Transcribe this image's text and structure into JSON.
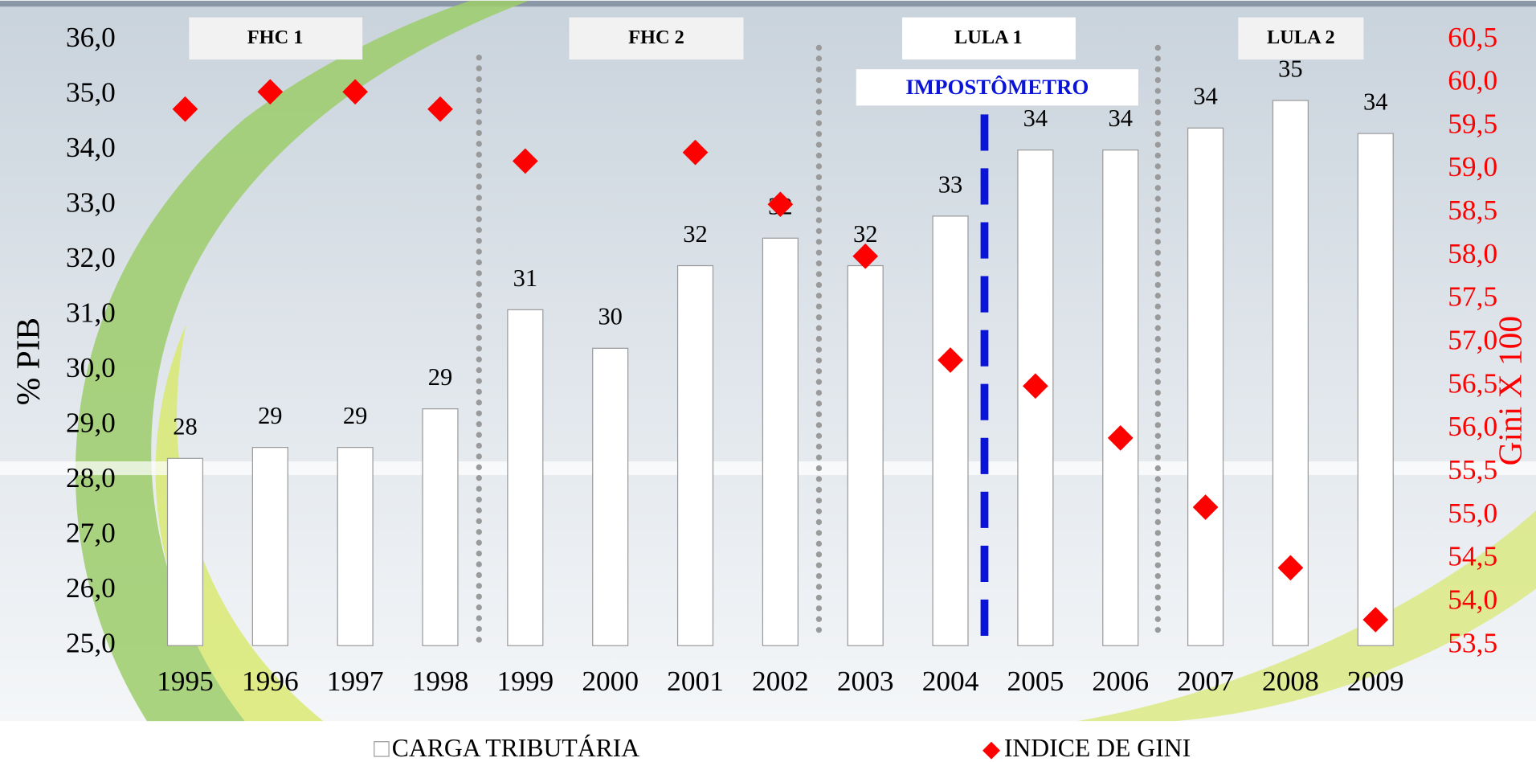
{
  "chart_data": {
    "type": "bar",
    "categories": [
      "1995",
      "1996",
      "1997",
      "1998",
      "1999",
      "2000",
      "2001",
      "2002",
      "2003",
      "2004",
      "2005",
      "2006",
      "2007",
      "2008",
      "2009"
    ],
    "series": [
      {
        "name": "CARGA TRIBUTÁRIA",
        "color": "#ffffff",
        "edgecolor": "#9a9a9a",
        "values": [
          28.4,
          28.6,
          28.6,
          29.3,
          31.1,
          30.4,
          31.9,
          32.4,
          31.9,
          32.8,
          34.0,
          34.0,
          34.4,
          34.9,
          34.3
        ],
        "value_labels": [
          "28",
          "29",
          "29",
          "29",
          "31",
          "30",
          "32",
          "32",
          "32",
          "33",
          "34",
          "34",
          "34",
          "35",
          "34"
        ]
      },
      {
        "name": "INDICE DE GINI",
        "color": "#ff0000",
        "type": "scatter",
        "axis": "y2",
        "values": [
          59.7,
          59.9,
          59.9,
          59.7,
          59.1,
          null,
          59.2,
          58.6,
          58.0,
          56.8,
          56.5,
          55.9,
          55.1,
          54.4,
          53.8
        ]
      }
    ],
    "ylabel": "% PIB",
    "y2label": "Gini X 100",
    "ylim": [
      25,
      36
    ],
    "yticks": [
      {
        "value": 25,
        "label": "25,0"
      },
      {
        "value": 26,
        "label": "26,0"
      },
      {
        "value": 27,
        "label": "27,0"
      },
      {
        "value": 28,
        "label": "28,0"
      },
      {
        "value": 29,
        "label": "29,0"
      },
      {
        "value": 30,
        "label": "30,0"
      },
      {
        "value": 31,
        "label": "31,0"
      },
      {
        "value": 32,
        "label": "32,0"
      },
      {
        "value": 33,
        "label": "33,0"
      },
      {
        "value": 34,
        "label": "34,0"
      },
      {
        "value": 35,
        "label": "35,0"
      },
      {
        "value": 36,
        "label": "36,0"
      }
    ],
    "y2lim": [
      53.5,
      60.5
    ],
    "y2ticks": [
      {
        "value": 53.5,
        "label": "53,5"
      },
      {
        "value": 54,
        "label": "54,0"
      },
      {
        "value": 54.5,
        "label": "54,5"
      },
      {
        "value": 55,
        "label": "55,0"
      },
      {
        "value": 55.5,
        "label": "55,5"
      },
      {
        "value": 56,
        "label": "56,0"
      },
      {
        "value": 56.5,
        "label": "56,5"
      },
      {
        "value": 57,
        "label": "57,0"
      },
      {
        "value": 57.5,
        "label": "57,5"
      },
      {
        "value": 58,
        "label": "58,0"
      },
      {
        "value": 58.5,
        "label": "58,5"
      },
      {
        "value": 59,
        "label": "59,0"
      },
      {
        "value": 59.5,
        "label": "59,5"
      },
      {
        "value": 60,
        "label": "60,0"
      },
      {
        "value": 60.5,
        "label": "60,5"
      }
    ],
    "annotations": [
      "FHC 1",
      "FHC 2",
      "LULA 1",
      "LULA 2",
      "IMPOSTÔMETRO"
    ],
    "legend": "bottom"
  }
}
